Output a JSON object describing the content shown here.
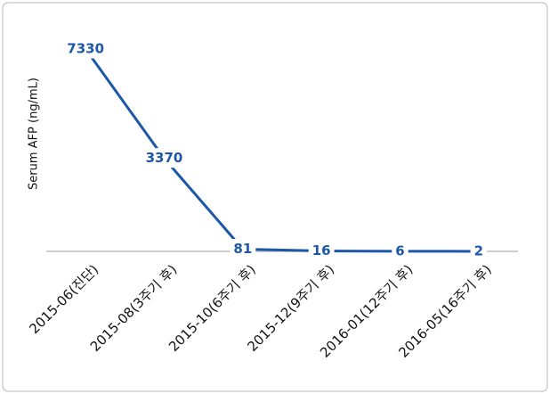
{
  "chart_data": {
    "type": "line",
    "y_label": "Serum AFP (ng/mL)",
    "categories": [
      "2015-06(진단)",
      "2015-08(3주기 후)",
      "2015-10(6주기 후)",
      "2015-12(9주기 후)",
      "2016-01(12주기 후)",
      "2016-05(16주기 후)"
    ],
    "series": [
      {
        "values": [
          7330,
          3370,
          81,
          16,
          6,
          2
        ],
        "color": "#1d58a8"
      }
    ],
    "ylim": [
      0,
      7330
    ]
  }
}
